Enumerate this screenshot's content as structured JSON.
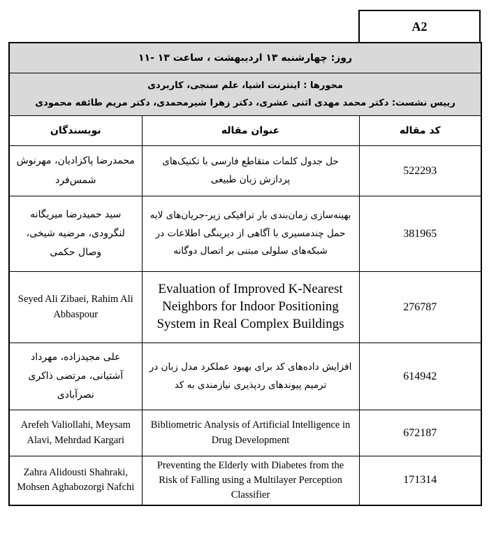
{
  "session": {
    "code": "A2",
    "datetime": "روز: چهارشنبه ۱۳ اردیبهشت ، ساعت ۱۳ -۱۱",
    "tracks": "محورها : اینترنت اشیا، علم سنجی، کاربردی",
    "chairs": "رییس نشست: دکتر محمد مهدی اثنی عشری، دکتر زهرا شیرمحمدی، دکتر مریم طائفه محمودی"
  },
  "columns": {
    "code": "کد مقاله",
    "title": "عنوان مقاله",
    "authors": "نویسندگان"
  },
  "rows": [
    {
      "authors": "محمدرضا پاکزادیان، مهرنوش شمس‌فرد",
      "title": "حل جدول کلمات متقاطع فارسی با تکنیک‌های پردازش زبان طبیعی",
      "code": "522293"
    },
    {
      "authors": "سید حمیدرضا میریگانه لنگرودی، مرضیه شیخی، وصال حکمی",
      "title": "بهینه‌سازی زمان‌بندی بار ترافیکی زیر-جریان‌های لایه حمل چندمسیری با آگاهی از دیرینگی اطلاعات در شبکه‌های سلولی مبتنی بر اتصال دوگانه",
      "code": "381965"
    },
    {
      "authors": "Seyed Ali Zibaei, Rahim Ali Abbaspour",
      "title": "Evaluation of Improved K-Nearest Neighbors for Indoor Positioning System in Real Complex Buildings",
      "code": "276787"
    },
    {
      "authors": "علی مجیدزاده، مهرداد آشتیانی، مرتضی ذاکری نصرآبادی",
      "title": "افزایش داده‌های کد برای بهبود عملکرد مدل زبان در ترمیم پیوندهای ردپذیری نیازمندی به کد",
      "code": "614942"
    },
    {
      "authors": "Arefeh Valiollahi, Meysam Alavi, Mehrdad Kargari",
      "title": "Bibliometric Analysis of Artificial Intelligence in Drug Development",
      "code": "672187"
    },
    {
      "authors": "Zahra Alidousti Shahraki, Mohsen Aghabozorgi Nafchi",
      "title": "Preventing the Elderly with Diabetes from the Risk of Falling using a Multilayer Perception Classifier",
      "code": "171314"
    }
  ],
  "colors": {
    "header_bg": "#d9d9d9",
    "border": "#000000"
  }
}
